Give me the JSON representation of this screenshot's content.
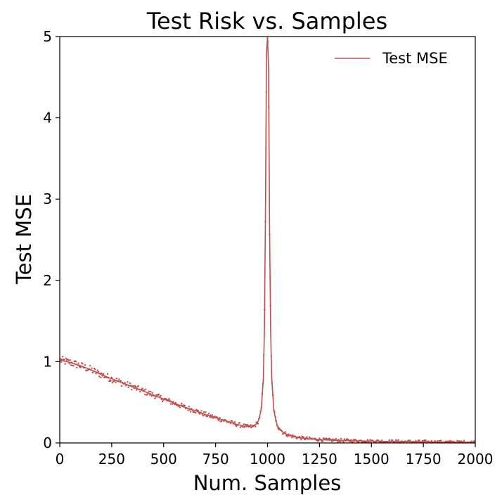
{
  "chart_data": {
    "type": "line",
    "title": "Test Risk vs. Samples",
    "xlabel": "Num. Samples",
    "ylabel": "Test MSE",
    "xlim": [
      0,
      2000
    ],
    "ylim": [
      0,
      5
    ],
    "xticks": [
      "0",
      "250",
      "500",
      "750",
      "1000",
      "1250",
      "1500",
      "1750",
      "2000"
    ],
    "yticks": [
      "0",
      "1",
      "2",
      "3",
      "4",
      "5"
    ],
    "grid": false,
    "legend_position": "top-right",
    "color": "#c0504d",
    "series": [
      {
        "name": "Test MSE",
        "x": [
          0,
          50,
          100,
          150,
          200,
          250,
          300,
          350,
          400,
          450,
          500,
          550,
          600,
          650,
          700,
          750,
          800,
          850,
          900,
          930,
          950,
          960,
          970,
          980,
          985,
          990,
          995,
          1000,
          1005,
          1010,
          1015,
          1020,
          1030,
          1040,
          1050,
          1075,
          1100,
          1150,
          1200,
          1250,
          1300,
          1400,
          1500,
          1600,
          1700,
          1800,
          1900,
          2000
        ],
        "y": [
          1.02,
          0.99,
          0.95,
          0.9,
          0.84,
          0.79,
          0.74,
          0.69,
          0.64,
          0.59,
          0.54,
          0.49,
          0.44,
          0.4,
          0.35,
          0.31,
          0.27,
          0.23,
          0.2,
          0.2,
          0.24,
          0.3,
          0.42,
          0.8,
          1.4,
          2.8,
          4.8,
          5.0,
          4.6,
          2.6,
          1.4,
          0.8,
          0.42,
          0.27,
          0.2,
          0.13,
          0.095,
          0.065,
          0.05,
          0.042,
          0.035,
          0.028,
          0.022,
          0.018,
          0.015,
          0.012,
          0.01,
          0.008
        ]
      }
    ]
  }
}
